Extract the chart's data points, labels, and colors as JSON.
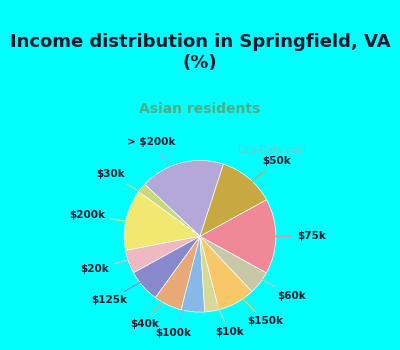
{
  "title": "Income distribution in Springfield, VA\n(%)",
  "subtitle": "Asian residents",
  "title_color": "#1a1a2e",
  "subtitle_color": "#4CAF82",
  "background_top": "#00FFFF",
  "background_chart": "#e8f5e8",
  "watermark": "City-Data.com",
  "labels": [
    "> $200k",
    "$30k",
    "$200k",
    "$20k",
    "$125k",
    "$40k",
    "$100k",
    "$10k",
    "$150k",
    "$60k",
    "$75k",
    "$50k"
  ],
  "values": [
    18,
    2,
    13,
    5,
    7,
    6,
    5,
    3,
    8,
    5,
    16,
    12
  ],
  "colors": [
    "#b3a8d8",
    "#c8d87a",
    "#f0e870",
    "#f0b8c0",
    "#8888cc",
    "#e8a878",
    "#88b8e8",
    "#d8d898",
    "#f8c868",
    "#c8c8a8",
    "#f08898",
    "#c8a840"
  ],
  "label_fontsize": 7.5,
  "startangle": 72
}
